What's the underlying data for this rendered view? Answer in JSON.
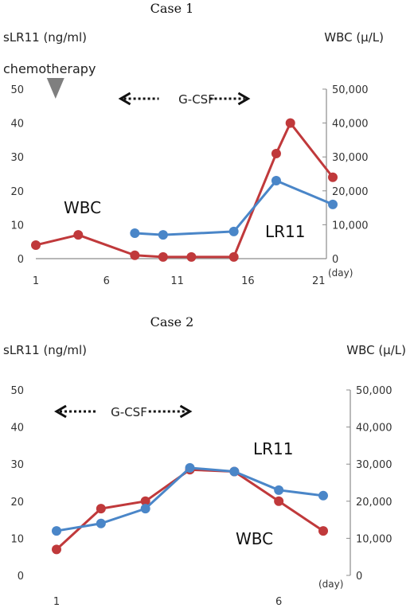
{
  "colors": {
    "wbc": "#c0393b",
    "lr11": "#4a86c8",
    "axis": "#8c8c8c",
    "marker": "#7f7f7f",
    "arrow": "#111111"
  },
  "chart_data": [
    {
      "type": "line",
      "title": "Case 1",
      "ylabel_left": "sLR11 (ng/ml)",
      "ylabel_right": "WBC (μ/L)",
      "xlabel": "(day)",
      "xlim": [
        1,
        22
      ],
      "xticks": [
        1,
        6,
        11,
        16,
        21
      ],
      "ylim_left": [
        0,
        50
      ],
      "yticks_left": [
        0,
        10,
        20,
        30,
        40,
        50
      ],
      "ylim_right": [
        0,
        50000
      ],
      "yticks_right": [
        "0",
        "10,000",
        "20,000",
        "30,000",
        "40,000",
        "50,000"
      ],
      "annotations": {
        "chemotherapy": "chemotherapy",
        "chemotherapy_day": 2,
        "gcsf": "G-CSF",
        "gcsf_from_day": 7,
        "gcsf_to_day": 16
      },
      "series": [
        {
          "name": "WBC",
          "axis": "right",
          "color": "#c0393b",
          "x": [
            1,
            4,
            8,
            10,
            12,
            15,
            18,
            19,
            22
          ],
          "y": [
            4000,
            7000,
            1000,
            500,
            500,
            500,
            31000,
            40000,
            24000
          ]
        },
        {
          "name": "LR11",
          "axis": "left",
          "color": "#4a86c8",
          "x": [
            8,
            10,
            15,
            18,
            22
          ],
          "y": [
            7.5,
            7,
            8,
            23,
            16
          ]
        }
      ]
    },
    {
      "type": "line",
      "title": "Case 2",
      "ylabel_left": "sLR11 (ng/ml)",
      "ylabel_right": "WBC (μ/L)",
      "xlabel": "(day)",
      "xlim": [
        1,
        7
      ],
      "xticks": [
        1,
        6
      ],
      "ylim_left": [
        0,
        50
      ],
      "yticks_left": [
        0,
        10,
        20,
        30,
        40,
        50
      ],
      "ylim_right": [
        0,
        50000
      ],
      "yticks_right": [
        "0",
        "10,000",
        "20,000",
        "30,000",
        "40,000",
        "50,000"
      ],
      "annotations": {
        "gcsf": "G-CSF",
        "gcsf_from_day": 1,
        "gcsf_to_day": 4
      },
      "series": [
        {
          "name": "WBC",
          "axis": "right",
          "color": "#c0393b",
          "x": [
            1,
            2,
            3,
            4,
            5,
            6,
            7
          ],
          "y": [
            7000,
            18000,
            20000,
            28500,
            28000,
            20000,
            12000
          ]
        },
        {
          "name": "LR11",
          "axis": "left",
          "color": "#4a86c8",
          "x": [
            1,
            2,
            3,
            4,
            5,
            6,
            7
          ],
          "y": [
            12,
            14,
            18,
            29,
            28,
            23,
            21.5
          ]
        }
      ]
    }
  ]
}
